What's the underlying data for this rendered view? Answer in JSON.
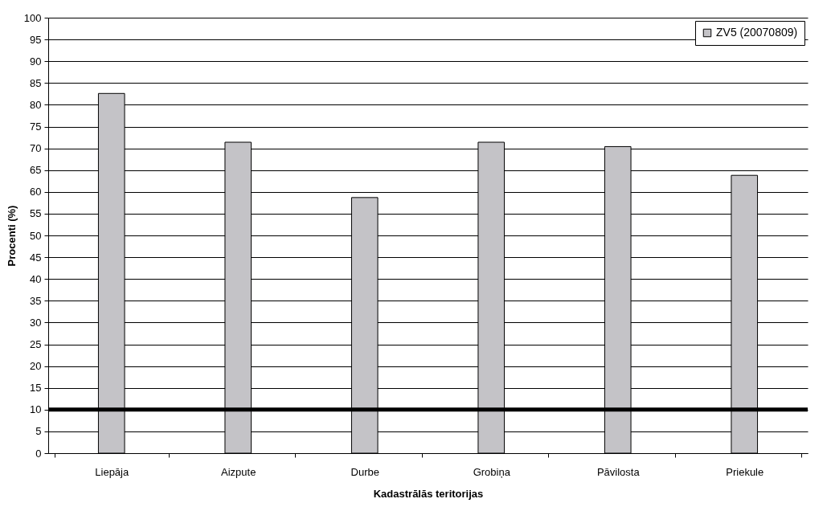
{
  "chart_data": {
    "type": "bar",
    "xlabel": "Kadastrālās teritorijas",
    "ylabel": "Procenti (%)",
    "categories": [
      "Liepāja",
      "Aizpute",
      "Durbe",
      "Grobiņa",
      "Pāvilosta",
      "Priekule"
    ],
    "series": [
      {
        "name": "ZV5 (20070809)",
        "color": "#c4c3c7",
        "values": [
          82.6,
          71.4,
          58.7,
          71.4,
          70.4,
          63.8
        ]
      }
    ],
    "ylim": [
      0,
      100
    ],
    "yticks": [
      0,
      5,
      10,
      15,
      20,
      25,
      30,
      35,
      40,
      45,
      50,
      55,
      60,
      65,
      70,
      75,
      80,
      85,
      90,
      95,
      100
    ],
    "grid": "y",
    "legend": "top right",
    "ref_lines": [
      {
        "axis": "y",
        "value": 10,
        "color": "#000000"
      }
    ]
  }
}
